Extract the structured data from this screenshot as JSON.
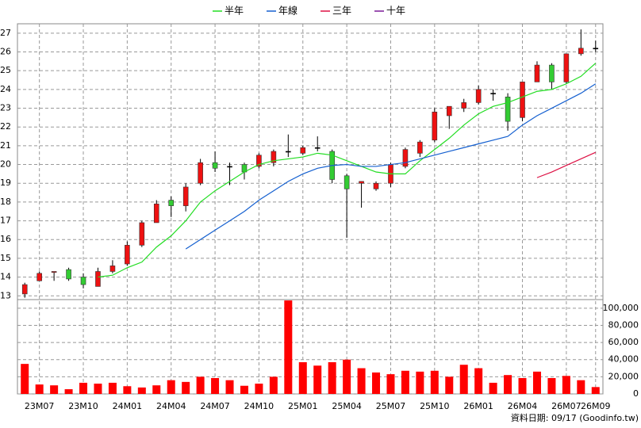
{
  "chart_data": [
    {
      "type": "candlestick",
      "categories": [
        null,
        "23M07",
        null,
        null,
        "23M10",
        null,
        null,
        "24M01",
        null,
        null,
        "24M04",
        null,
        null,
        "24M07",
        null,
        null,
        "24M10",
        null,
        null,
        "25M01",
        null,
        null,
        "25M04",
        null,
        null,
        "25M07",
        null,
        null,
        "25M10",
        null,
        null,
        "26M01",
        null,
        null,
        "26M04",
        null,
        null,
        "26M07",
        null,
        "26M09"
      ],
      "open": [
        13.1,
        13.8,
        14.25,
        14.4,
        14.0,
        13.5,
        14.3,
        14.7,
        15.7,
        16.9,
        18.1,
        17.8,
        19.0,
        20.1,
        19.9,
        20.0,
        19.9,
        20.1,
        20.7,
        20.6,
        20.9,
        20.7,
        19.4,
        19.0,
        18.7,
        19.0,
        19.9,
        20.6,
        21.3,
        22.6,
        23.0,
        23.3,
        23.8,
        23.6,
        22.5,
        24.4,
        25.3,
        24.4,
        25.9,
        26.2
      ],
      "high": [
        13.7,
        14.3,
        14.3,
        14.5,
        14.2,
        14.5,
        14.9,
        15.9,
        17.0,
        18.1,
        18.3,
        19.0,
        20.3,
        20.7,
        20.1,
        20.1,
        20.6,
        20.8,
        21.6,
        21.0,
        21.5,
        20.8,
        19.5,
        19.1,
        19.1,
        20.1,
        20.9,
        21.3,
        23.0,
        23.1,
        23.5,
        24.2,
        24.0,
        23.8,
        24.4,
        25.5,
        25.4,
        25.9,
        27.2,
        26.6
      ],
      "low": [
        12.9,
        13.8,
        13.8,
        13.8,
        13.4,
        13.5,
        14.2,
        14.6,
        15.6,
        16.9,
        17.2,
        17.5,
        18.9,
        19.6,
        18.9,
        19.2,
        19.8,
        19.9,
        20.4,
        20.5,
        20.7,
        19.0,
        16.1,
        17.7,
        18.6,
        18.8,
        19.8,
        20.4,
        21.2,
        21.9,
        22.8,
        23.2,
        23.4,
        21.8,
        22.3,
        24.4,
        24.0,
        24.3,
        25.8,
        26.0
      ],
      "close": [
        13.6,
        14.2,
        14.3,
        13.9,
        13.6,
        14.3,
        14.6,
        15.7,
        16.9,
        17.9,
        17.8,
        18.8,
        20.1,
        19.8,
        19.9,
        19.6,
        20.5,
        20.7,
        20.7,
        20.9,
        20.9,
        19.2,
        18.7,
        19.1,
        19.0,
        20.0,
        20.8,
        21.2,
        22.8,
        23.1,
        23.3,
        24.0,
        23.8,
        22.3,
        24.4,
        25.3,
        24.4,
        25.9,
        26.2,
        26.2
      ],
      "up_color": "#ee1111",
      "down_color": "#33cc33",
      "series": [
        {
          "name": "半年",
          "color": "#22dd22",
          "values": [
            null,
            null,
            null,
            null,
            null,
            14.0,
            14.1,
            14.5,
            14.8,
            15.6,
            16.2,
            17.0,
            18.0,
            18.6,
            19.1,
            19.6,
            20.0,
            20.2,
            20.3,
            20.4,
            20.6,
            20.5,
            20.2,
            19.9,
            19.6,
            19.5,
            19.5,
            20.2,
            20.8,
            21.4,
            22.1,
            22.7,
            23.1,
            23.3,
            23.6,
            23.9,
            24.0,
            24.3,
            24.7,
            25.4
          ]
        },
        {
          "name": "年線",
          "color": "#1560d0",
          "values": [
            null,
            null,
            null,
            null,
            null,
            null,
            null,
            null,
            null,
            null,
            null,
            15.5,
            16.0,
            16.5,
            17.0,
            17.5,
            18.1,
            18.6,
            19.1,
            19.5,
            19.8,
            19.95,
            20.0,
            19.9,
            19.9,
            20.0,
            20.1,
            20.3,
            20.5,
            20.7,
            20.9,
            21.1,
            21.3,
            21.5,
            22.1,
            22.6,
            23.0,
            23.4,
            23.8,
            24.3
          ]
        },
        {
          "name": "三年",
          "color": "#dd1144",
          "values": [
            null,
            null,
            null,
            null,
            null,
            null,
            null,
            null,
            null,
            null,
            null,
            null,
            null,
            null,
            null,
            null,
            null,
            null,
            null,
            null,
            null,
            null,
            null,
            null,
            null,
            null,
            null,
            null,
            null,
            null,
            null,
            null,
            null,
            null,
            null,
            19.3,
            19.6,
            19.95,
            20.3,
            20.65
          ]
        },
        {
          "name": "十年",
          "color": "#7a1a99",
          "values": [
            null,
            null,
            null,
            null,
            null,
            null,
            null,
            null,
            null,
            null,
            null,
            null,
            null,
            null,
            null,
            null,
            null,
            null,
            null,
            null,
            null,
            null,
            null,
            null,
            null,
            null,
            null,
            null,
            null,
            null,
            null,
            null,
            null,
            null,
            null,
            null,
            null,
            null,
            null,
            null
          ]
        }
      ],
      "ylim": [
        12.8,
        27.5
      ],
      "yticks": [
        13,
        14,
        15,
        16,
        17,
        18,
        19,
        20,
        21,
        22,
        23,
        24,
        25,
        26,
        27
      ],
      "grid": true
    },
    {
      "type": "bar",
      "values": [
        35000,
        11000,
        10000,
        5500,
        13000,
        12000,
        13000,
        9000,
        7500,
        10000,
        16000,
        14000,
        20000,
        18500,
        16000,
        9500,
        12000,
        20000,
        109000,
        37000,
        33000,
        37000,
        40000,
        30000,
        25000,
        23000,
        27000,
        26000,
        27000,
        20000,
        34000,
        30000,
        13000,
        22000,
        18500,
        26000,
        18500,
        21000,
        16000,
        8000
      ],
      "color": "#ff0000",
      "ylim": [
        0,
        110000
      ],
      "yticks": [
        0,
        {
          "value": 20000,
          "label": "20,000"
        },
        {
          "value": 40000,
          "label": "40,000"
        },
        {
          "value": 60000,
          "label": "60,000"
        },
        {
          "value": 80000,
          "label": "80,000"
        },
        {
          "value": 100000,
          "label": "100,000"
        }
      ],
      "grid": true,
      "note": "資料日期: 09/17 (Goodinfo.tw)"
    }
  ]
}
